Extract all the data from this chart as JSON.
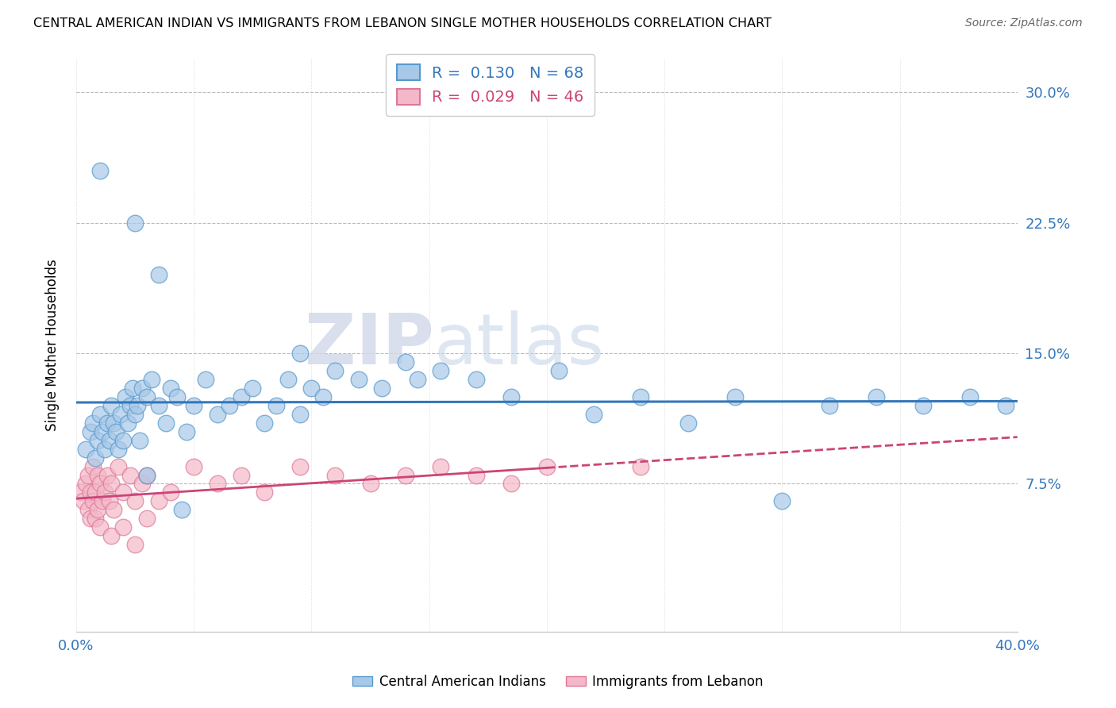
{
  "title": "CENTRAL AMERICAN INDIAN VS IMMIGRANTS FROM LEBANON SINGLE MOTHER HOUSEHOLDS CORRELATION CHART",
  "source": "Source: ZipAtlas.com",
  "ylabel": "Single Mother Households",
  "xlim": [
    0.0,
    40.0
  ],
  "ylim": [
    -1.0,
    32.0
  ],
  "yticks": [
    7.5,
    15.0,
    22.5,
    30.0
  ],
  "xticks": [
    0.0,
    5.0,
    10.0,
    15.0,
    20.0,
    25.0,
    30.0,
    35.0,
    40.0
  ],
  "blue_label": "Central American Indians",
  "pink_label": "Immigrants from Lebanon",
  "blue_R": "0.130",
  "blue_N": "68",
  "pink_R": "0.029",
  "pink_N": "46",
  "blue_color": "#a8c8e8",
  "pink_color": "#f4b8c8",
  "blue_edge_color": "#5599cc",
  "pink_edge_color": "#dd7799",
  "blue_line_color": "#3377bb",
  "pink_line_color": "#cc4477",
  "watermark_zip": "ZIP",
  "watermark_atlas": "atlas",
  "blue_dots_x": [
    0.4,
    0.6,
    0.7,
    0.8,
    0.9,
    1.0,
    1.1,
    1.2,
    1.3,
    1.4,
    1.5,
    1.6,
    1.7,
    1.8,
    1.9,
    2.0,
    2.1,
    2.2,
    2.3,
    2.4,
    2.5,
    2.6,
    2.7,
    2.8,
    3.0,
    3.2,
    3.5,
    3.8,
    4.0,
    4.3,
    4.7,
    5.0,
    5.5,
    6.0,
    6.5,
    7.0,
    7.5,
    8.0,
    8.5,
    9.0,
    9.5,
    10.0,
    10.5,
    11.0,
    12.0,
    13.0,
    14.0,
    15.5,
    17.0,
    18.5,
    20.5,
    22.0,
    24.0,
    26.0,
    28.0,
    30.0,
    32.0,
    34.0,
    36.0,
    38.0,
    39.5,
    1.0,
    2.5,
    3.5,
    9.5,
    14.5,
    3.0,
    4.5
  ],
  "blue_dots_y": [
    9.5,
    10.5,
    11.0,
    9.0,
    10.0,
    11.5,
    10.5,
    9.5,
    11.0,
    10.0,
    12.0,
    11.0,
    10.5,
    9.5,
    11.5,
    10.0,
    12.5,
    11.0,
    12.0,
    13.0,
    11.5,
    12.0,
    10.0,
    13.0,
    12.5,
    13.5,
    12.0,
    11.0,
    13.0,
    12.5,
    10.5,
    12.0,
    13.5,
    11.5,
    12.0,
    12.5,
    13.0,
    11.0,
    12.0,
    13.5,
    11.5,
    13.0,
    12.5,
    14.0,
    13.5,
    13.0,
    14.5,
    14.0,
    13.5,
    12.5,
    14.0,
    11.5,
    12.5,
    11.0,
    12.5,
    6.5,
    12.0,
    12.5,
    12.0,
    12.5,
    12.0,
    25.5,
    22.5,
    19.5,
    15.0,
    13.5,
    8.0,
    6.0
  ],
  "pink_dots_x": [
    0.2,
    0.3,
    0.4,
    0.5,
    0.5,
    0.6,
    0.6,
    0.7,
    0.7,
    0.8,
    0.8,
    0.9,
    0.9,
    1.0,
    1.0,
    1.1,
    1.2,
    1.3,
    1.4,
    1.5,
    1.6,
    1.8,
    2.0,
    2.3,
    2.5,
    2.8,
    3.0,
    3.5,
    4.0,
    5.0,
    6.0,
    7.0,
    8.0,
    9.5,
    11.0,
    12.5,
    14.0,
    15.5,
    17.0,
    18.5,
    20.0,
    24.0,
    1.5,
    2.0,
    2.5,
    3.0
  ],
  "pink_dots_y": [
    7.0,
    6.5,
    7.5,
    6.0,
    8.0,
    7.0,
    5.5,
    6.5,
    8.5,
    7.0,
    5.5,
    6.0,
    8.0,
    7.5,
    5.0,
    6.5,
    7.0,
    8.0,
    6.5,
    7.5,
    6.0,
    8.5,
    7.0,
    8.0,
    6.5,
    7.5,
    8.0,
    6.5,
    7.0,
    8.5,
    7.5,
    8.0,
    7.0,
    8.5,
    8.0,
    7.5,
    8.0,
    8.5,
    8.0,
    7.5,
    8.5,
    8.5,
    4.5,
    5.0,
    4.0,
    5.5
  ],
  "blue_trend_start_y": 10.2,
  "blue_trend_end_y": 13.0,
  "pink_trend_start_y": 8.0,
  "pink_trend_end_y": 8.3,
  "pink_solid_end_x": 20.0
}
